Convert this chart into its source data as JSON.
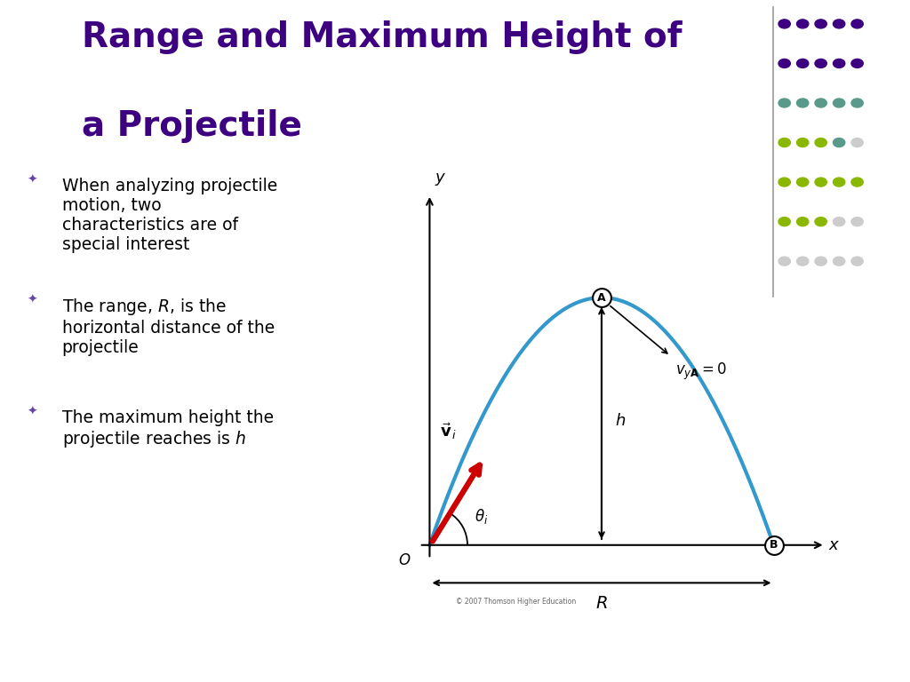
{
  "title_line1": "Range and Maximum Height of",
  "title_line2": "a Projectile",
  "title_color": "#3d0080",
  "title_fontsize": 28,
  "bg_color": "#ffffff",
  "bullet_color": "#6644aa",
  "bullet_symbol": "✦",
  "bullets": [
    "When analyzing projectile\nmotion, two\ncharacteristics are of\nspecial interest",
    "The range, $R$, is the\nhorizontal distance of the\nprojectile",
    "The maximum height the\nprojectile reaches is $h$"
  ],
  "curve_color": "#3399cc",
  "arrow_color": "#cc0000",
  "axis_color": "#000000",
  "dot_rows": [
    [
      "#3d0080",
      "#3d0080",
      "#3d0080",
      "#3d0080",
      "#3d0080"
    ],
    [
      "#3d0080",
      "#3d0080",
      "#3d0080",
      "#3d0080",
      "#3d0080"
    ],
    [
      "#5a9a8a",
      "#5a9a8a",
      "#5a9a8a",
      "#5a9a8a",
      "#5a9a8a"
    ],
    [
      "#8ab800",
      "#8ab800",
      "#8ab800",
      "#5a9a8a",
      "#cccccc"
    ],
    [
      "#8ab800",
      "#8ab800",
      "#8ab800",
      "#8ab800",
      "#8ab800"
    ],
    [
      "#8ab800",
      "#8ab800",
      "#8ab800",
      "#cccccc",
      "#cccccc"
    ],
    [
      "#cccccc",
      "#cccccc",
      "#cccccc",
      "#cccccc",
      "#cccccc"
    ]
  ]
}
